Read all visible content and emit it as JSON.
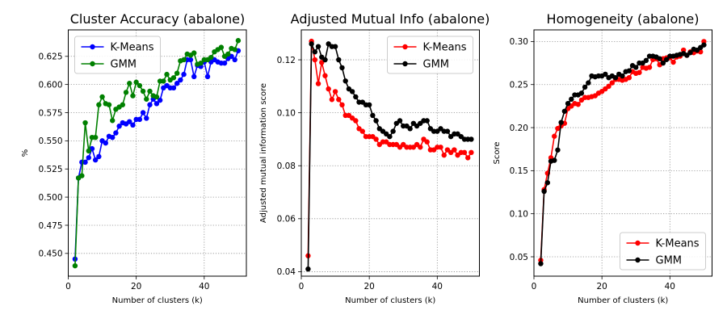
{
  "chart_data": [
    {
      "type": "line",
      "title": "Cluster Accuracy (abalone)",
      "xlabel": "Number of clusters (k)",
      "ylabel": "%",
      "xlim": [
        0,
        52.4
      ],
      "ylim": [
        0.4298,
        0.6485
      ],
      "xticks": [
        0,
        20,
        40
      ],
      "yticks": [
        0.45,
        0.475,
        0.5,
        0.525,
        0.55,
        0.575,
        0.6,
        0.625
      ],
      "ytick_labels": [
        "0.450",
        "0.475",
        "0.500",
        "0.525",
        "0.550",
        "0.575",
        "0.600",
        "0.625"
      ],
      "grid": true,
      "legend_loc": "upper left",
      "series": [
        {
          "name": "K-Means",
          "color": "#0000ff",
          "x": [
            2,
            3,
            4,
            5,
            6,
            7,
            8,
            9,
            10,
            11,
            12,
            13,
            14,
            15,
            16,
            17,
            18,
            19,
            20,
            21,
            22,
            23,
            24,
            25,
            26,
            27,
            28,
            29,
            30,
            31,
            32,
            33,
            34,
            35,
            36,
            37,
            38,
            39,
            40,
            41,
            42,
            43,
            44,
            45,
            46,
            47,
            48,
            49,
            50
          ],
          "values": [
            0.445,
            0.517,
            0.531,
            0.531,
            0.535,
            0.543,
            0.533,
            0.536,
            0.55,
            0.548,
            0.554,
            0.553,
            0.557,
            0.563,
            0.566,
            0.565,
            0.567,
            0.564,
            0.569,
            0.569,
            0.575,
            0.57,
            0.582,
            0.587,
            0.583,
            0.586,
            0.597,
            0.599,
            0.597,
            0.597,
            0.601,
            0.604,
            0.609,
            0.622,
            0.622,
            0.607,
            0.617,
            0.616,
            0.62,
            0.607,
            0.62,
            0.622,
            0.62,
            0.619,
            0.619,
            0.623,
            0.625,
            0.622,
            0.63
          ]
        },
        {
          "name": "GMM",
          "color": "#008000",
          "x": [
            2,
            3,
            4,
            5,
            6,
            7,
            8,
            9,
            10,
            11,
            12,
            13,
            14,
            15,
            16,
            17,
            18,
            19,
            20,
            21,
            22,
            23,
            24,
            25,
            26,
            27,
            28,
            29,
            30,
            31,
            32,
            33,
            34,
            35,
            36,
            37,
            38,
            39,
            40,
            41,
            42,
            43,
            44,
            45,
            46,
            47,
            48,
            49,
            50
          ],
          "values": [
            0.439,
            0.517,
            0.519,
            0.566,
            0.541,
            0.553,
            0.553,
            0.582,
            0.589,
            0.583,
            0.582,
            0.568,
            0.578,
            0.58,
            0.582,
            0.593,
            0.601,
            0.59,
            0.602,
            0.599,
            0.594,
            0.587,
            0.594,
            0.59,
            0.589,
            0.603,
            0.603,
            0.609,
            0.604,
            0.606,
            0.61,
            0.621,
            0.622,
            0.627,
            0.626,
            0.628,
            0.618,
            0.619,
            0.622,
            0.622,
            0.624,
            0.629,
            0.631,
            0.633,
            0.625,
            0.627,
            0.632,
            0.631,
            0.639
          ]
        }
      ]
    },
    {
      "type": "line",
      "title": "Adjusted Mutual Info (abalone)",
      "xlabel": "Number of clusters (k)",
      "ylabel": "Adjusted mutual information score",
      "xlim": [
        0,
        52.4
      ],
      "ylim": [
        0.0383,
        0.1313
      ],
      "xticks": [
        0,
        20,
        40
      ],
      "yticks": [
        0.04,
        0.06,
        0.08,
        0.1,
        0.12
      ],
      "ytick_labels": [
        "0.04",
        "0.06",
        "0.08",
        "0.10",
        "0.12"
      ],
      "grid": true,
      "legend_loc": "upper right",
      "series": [
        {
          "name": "K-Means",
          "color": "#ff0000",
          "x": [
            2,
            3,
            4,
            5,
            6,
            7,
            8,
            9,
            10,
            11,
            12,
            13,
            14,
            15,
            16,
            17,
            18,
            19,
            20,
            21,
            22,
            23,
            24,
            25,
            26,
            27,
            28,
            29,
            30,
            31,
            32,
            33,
            34,
            35,
            36,
            37,
            38,
            39,
            40,
            41,
            42,
            43,
            44,
            45,
            46,
            47,
            48,
            49,
            50
          ],
          "values": [
            0.046,
            0.127,
            0.12,
            0.111,
            0.119,
            0.114,
            0.109,
            0.105,
            0.108,
            0.105,
            0.103,
            0.099,
            0.099,
            0.098,
            0.097,
            0.094,
            0.093,
            0.091,
            0.091,
            0.091,
            0.09,
            0.088,
            0.089,
            0.089,
            0.088,
            0.088,
            0.088,
            0.087,
            0.088,
            0.087,
            0.087,
            0.087,
            0.088,
            0.087,
            0.09,
            0.089,
            0.086,
            0.086,
            0.087,
            0.087,
            0.084,
            0.086,
            0.085,
            0.086,
            0.084,
            0.085,
            0.085,
            0.083,
            0.085
          ]
        },
        {
          "name": "GMM",
          "color": "#000000",
          "x": [
            2,
            3,
            4,
            5,
            6,
            7,
            8,
            9,
            10,
            11,
            12,
            13,
            14,
            15,
            16,
            17,
            18,
            19,
            20,
            21,
            22,
            23,
            24,
            25,
            26,
            27,
            28,
            29,
            30,
            31,
            32,
            33,
            34,
            35,
            36,
            37,
            38,
            39,
            40,
            41,
            42,
            43,
            44,
            45,
            46,
            47,
            48,
            49,
            50
          ],
          "values": [
            0.041,
            0.126,
            0.123,
            0.125,
            0.121,
            0.12,
            0.126,
            0.125,
            0.125,
            0.12,
            0.117,
            0.112,
            0.109,
            0.108,
            0.106,
            0.104,
            0.104,
            0.103,
            0.103,
            0.099,
            0.097,
            0.094,
            0.093,
            0.092,
            0.091,
            0.093,
            0.096,
            0.097,
            0.095,
            0.095,
            0.094,
            0.096,
            0.095,
            0.096,
            0.097,
            0.097,
            0.094,
            0.093,
            0.093,
            0.094,
            0.093,
            0.093,
            0.091,
            0.092,
            0.092,
            0.091,
            0.09,
            0.09,
            0.09
          ]
        }
      ]
    },
    {
      "type": "line",
      "title": "Homogeneity (abalone)",
      "xlabel": "Number of clusters (k)",
      "ylabel": "Score",
      "xlim": [
        0,
        52.4
      ],
      "ylim": [
        0.0275,
        0.3135
      ],
      "xticks": [
        0,
        20,
        40
      ],
      "yticks": [
        0.05,
        0.1,
        0.15,
        0.2,
        0.25,
        0.3
      ],
      "ytick_labels": [
        "0.05",
        "0.10",
        "0.15",
        "0.20",
        "0.25",
        "0.30"
      ],
      "grid": true,
      "legend_loc": "lower right",
      "series": [
        {
          "name": "K-Means",
          "color": "#ff0000",
          "x": [
            2,
            3,
            4,
            5,
            6,
            7,
            8,
            9,
            10,
            11,
            12,
            13,
            14,
            15,
            16,
            17,
            18,
            19,
            20,
            21,
            22,
            23,
            24,
            25,
            26,
            27,
            28,
            29,
            30,
            31,
            32,
            33,
            34,
            35,
            36,
            37,
            38,
            39,
            40,
            41,
            42,
            43,
            44,
            45,
            46,
            47,
            48,
            49,
            50
          ],
          "values": [
            0.046,
            0.128,
            0.147,
            0.165,
            0.19,
            0.199,
            0.202,
            0.205,
            0.222,
            0.225,
            0.228,
            0.227,
            0.232,
            0.235,
            0.235,
            0.236,
            0.237,
            0.24,
            0.242,
            0.245,
            0.248,
            0.252,
            0.256,
            0.256,
            0.255,
            0.256,
            0.258,
            0.265,
            0.263,
            0.264,
            0.27,
            0.269,
            0.27,
            0.279,
            0.28,
            0.273,
            0.28,
            0.281,
            0.281,
            0.276,
            0.282,
            0.283,
            0.29,
            0.284,
            0.288,
            0.287,
            0.289,
            0.288,
            0.3
          ]
        },
        {
          "name": "GMM",
          "color": "#000000",
          "x": [
            2,
            3,
            4,
            5,
            6,
            7,
            8,
            9,
            10,
            11,
            12,
            13,
            14,
            15,
            16,
            17,
            18,
            19,
            20,
            21,
            22,
            23,
            24,
            25,
            26,
            27,
            28,
            29,
            30,
            31,
            32,
            33,
            34,
            35,
            36,
            37,
            38,
            39,
            40,
            41,
            42,
            43,
            44,
            45,
            46,
            47,
            48,
            49,
            50
          ],
          "values": [
            0.042,
            0.126,
            0.136,
            0.161,
            0.162,
            0.174,
            0.206,
            0.219,
            0.228,
            0.233,
            0.238,
            0.238,
            0.24,
            0.247,
            0.252,
            0.26,
            0.259,
            0.26,
            0.26,
            0.262,
            0.258,
            0.26,
            0.258,
            0.262,
            0.26,
            0.265,
            0.266,
            0.272,
            0.27,
            0.275,
            0.275,
            0.278,
            0.283,
            0.283,
            0.282,
            0.28,
            0.275,
            0.279,
            0.283,
            0.283,
            0.284,
            0.285,
            0.286,
            0.284,
            0.287,
            0.291,
            0.29,
            0.293,
            0.296
          ]
        }
      ]
    }
  ]
}
